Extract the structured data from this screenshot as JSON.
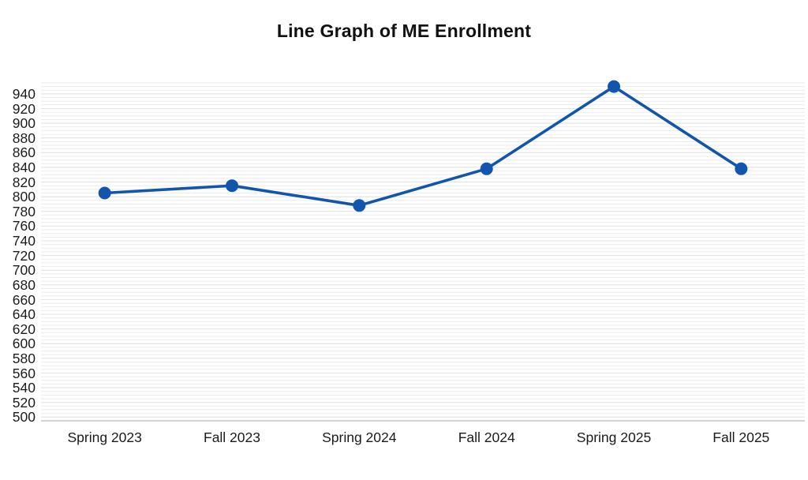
{
  "page": {
    "background": "#ffffff"
  },
  "chart_data": {
    "type": "line",
    "title": "Line Graph of ME Enrollment",
    "categories": [
      "Spring 2023",
      "Fall 2023",
      "Spring 2024",
      "Fall 2024",
      "Spring 2025",
      "Fall 2025"
    ],
    "series": [
      {
        "name": "ME Enrollment",
        "values": [
          805,
          815,
          788,
          838,
          950,
          838
        ]
      }
    ],
    "xlabel": "",
    "ylabel": "",
    "ylim": [
      495,
      956
    ],
    "yticks": [
      500,
      520,
      540,
      560,
      580,
      600,
      620,
      640,
      660,
      680,
      700,
      720,
      740,
      760,
      780,
      800,
      820,
      840,
      860,
      880,
      900,
      920,
      940
    ],
    "ytick_step": 20,
    "minor_grid_step": 5,
    "grid": true,
    "legend_position": "none"
  },
  "style": {
    "line_color": "#1156AC",
    "marker_color": "#1156AC",
    "minor_grid_color": "#ebebeb",
    "major_grid_color": "#e3e3e3",
    "axis_line_color": "#c6c6c6",
    "text_color": "#1b1b1b",
    "title_color": "#111111"
  }
}
